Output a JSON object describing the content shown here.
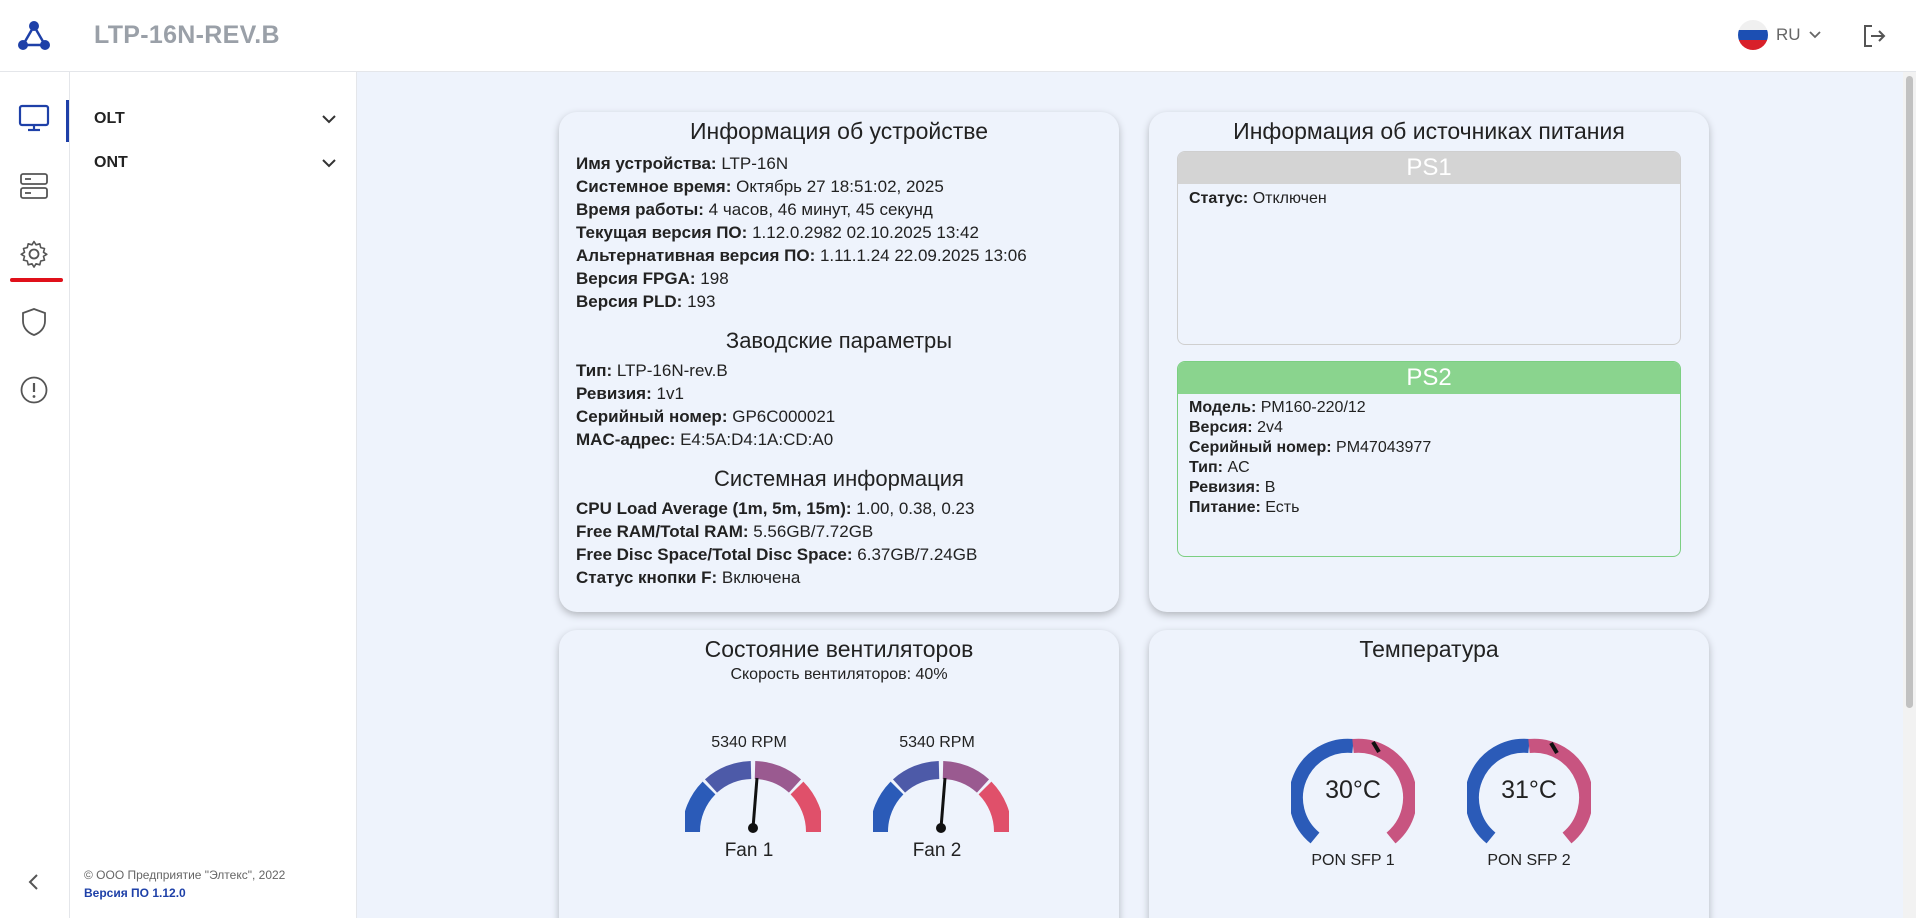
{
  "header": {
    "title": "LTP-16N-REV.B",
    "language": "RU"
  },
  "rail": {
    "items": [
      "monitor-icon",
      "server-icon",
      "gear-icon",
      "shield-icon",
      "alert-icon"
    ]
  },
  "subnav": {
    "items": [
      {
        "label": "OLT"
      },
      {
        "label": "ONT"
      }
    ],
    "copyright": "© ООО Предприятие \"Элтекс\", 2022",
    "version": "Версия ПО 1.12.0"
  },
  "device_info": {
    "title": "Информация об устройстве",
    "rows": [
      {
        "k": "Имя устройства:",
        "v": "LTP-16N"
      },
      {
        "k": "Системное время:",
        "v": "Октябрь 27 18:51:02, 2025"
      },
      {
        "k": "Время работы:",
        "v": "4 часов, 46 минут, 45 секунд"
      },
      {
        "k": "Текущая версия ПО:",
        "v": "1.12.0.2982 02.10.2025 13:42"
      },
      {
        "k": "Альтернативная версия ПО:",
        "v": "1.11.1.24 22.09.2025 13:06"
      },
      {
        "k": "Версия FPGA:",
        "v": "198"
      },
      {
        "k": "Версия PLD:",
        "v": "193"
      }
    ],
    "factory_title": "Заводские параметры",
    "factory_rows": [
      {
        "k": "Тип:",
        "v": "LTP-16N-rev.B"
      },
      {
        "k": "Ревизия:",
        "v": "1v1"
      },
      {
        "k": "Серийный номер:",
        "v": "GP6C000021"
      },
      {
        "k": "MAC-адрес:",
        "v": "E4:5A:D4:1A:CD:A0"
      }
    ],
    "system_title": "Системная информация",
    "system_rows": [
      {
        "k": "CPU Load Average (1m, 5m, 15m):",
        "v": "1.00, 0.38, 0.23"
      },
      {
        "k": "Free RAM/Total RAM:",
        "v": "5.56GB/7.72GB"
      },
      {
        "k": "Free Disc Space/Total Disc Space:",
        "v": "6.37GB/7.24GB"
      },
      {
        "k": "Статус кнопки F:",
        "v": "Включена"
      }
    ]
  },
  "power": {
    "title": "Информация об источниках питания",
    "ps1": {
      "name": "PS1",
      "header_color": "#d4d4d4",
      "rows": [
        {
          "k": "Статус:",
          "v": "Отключен"
        }
      ]
    },
    "ps2": {
      "name": "PS2",
      "header_color": "#8ad48e",
      "rows": [
        {
          "k": "Модель:",
          "v": "PM160-220/12"
        },
        {
          "k": "Версия:",
          "v": "2v4"
        },
        {
          "k": "Серийный номер:",
          "v": "PM47043977"
        },
        {
          "k": "Тип:",
          "v": "AC"
        },
        {
          "k": "Ревизия:",
          "v": "B"
        },
        {
          "k": "Питание:",
          "v": "Есть"
        }
      ]
    }
  },
  "fans": {
    "title": "Состояние вентиляторов",
    "speed_text": "Скорость вентиляторов: 40%",
    "items": [
      {
        "name": "Fan 1",
        "rpm": "5340 RPM"
      },
      {
        "name": "Fan 2",
        "rpm": "5340 RPM"
      }
    ]
  },
  "temperature": {
    "title": "Температура",
    "items": [
      {
        "name": "PON SFP 1",
        "value": "30°C"
      },
      {
        "name": "PON SFP 2",
        "value": "31°C"
      }
    ]
  },
  "colors": {
    "accent": "#1e40a8",
    "alert_underline": "#e0101a",
    "gauge_low": "#2b5bb8",
    "gauge_high": "#e0506a"
  }
}
